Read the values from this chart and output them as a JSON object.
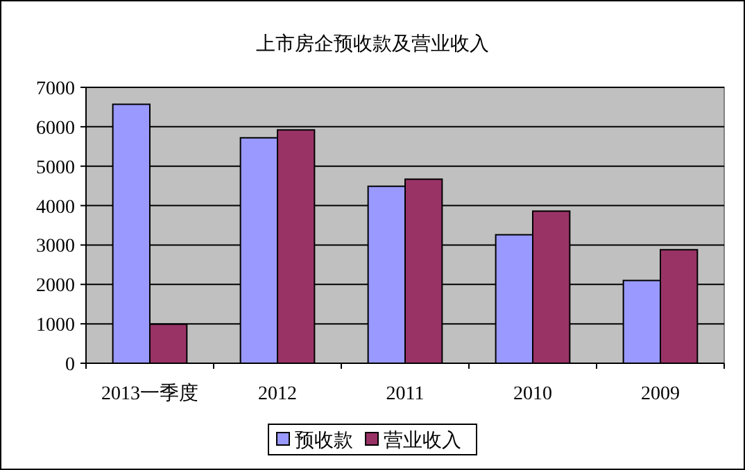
{
  "chart_data": {
    "type": "bar",
    "title": "上市房企预收款及营业收入",
    "categories": [
      "2013一季度",
      "2012",
      "2011",
      "2010",
      "2009"
    ],
    "series": [
      {
        "name": "预收款",
        "color": "#9999ff",
        "values": [
          6570,
          5720,
          4490,
          3260,
          2100
        ]
      },
      {
        "name": "营业收入",
        "color": "#993366",
        "values": [
          990,
          5920,
          4670,
          3860,
          2880
        ]
      }
    ],
    "ylim": [
      0,
      7000
    ],
    "yticks": [
      0,
      1000,
      2000,
      3000,
      4000,
      5000,
      6000,
      7000
    ],
    "grid": "y",
    "legend": "bottom"
  }
}
